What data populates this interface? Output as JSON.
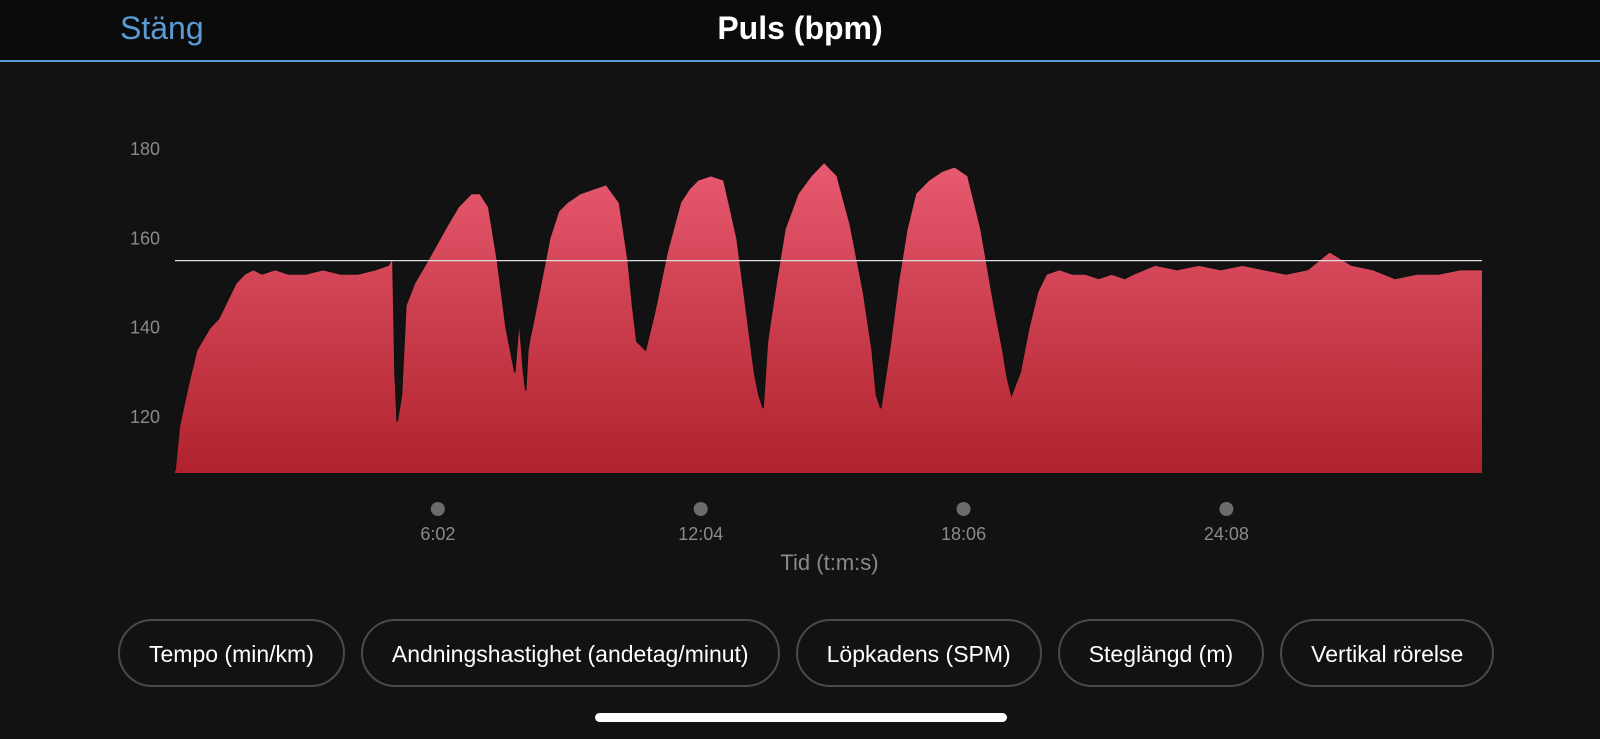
{
  "header": {
    "close_label": "Stäng",
    "title": "Puls (bpm)"
  },
  "chart_data": {
    "type": "area",
    "title": "Puls (bpm)",
    "xlabel": "Tid (t:m:s)",
    "ylabel": "",
    "x_unit": "minutes",
    "xlim": [
      0,
      30
    ],
    "ylim": [
      107.5,
      186
    ],
    "y_ticks": [
      120,
      140,
      160,
      180
    ],
    "x_ticks": [
      {
        "value": 6.033,
        "label": "6:02"
      },
      {
        "value": 12.067,
        "label": "12:04"
      },
      {
        "value": 18.1,
        "label": "18:06"
      },
      {
        "value": 24.133,
        "label": "24:08"
      }
    ],
    "reference_line": 155,
    "grid": false,
    "series": [
      {
        "x": [
          0,
          0.1,
          0.3,
          0.5,
          0.8,
          1.0,
          1.2,
          1.4,
          1.6,
          1.8,
          2.0,
          2.3,
          2.6,
          3.0,
          3.4,
          3.8,
          4.2,
          4.6,
          4.9,
          5.0,
          5.05,
          5.1,
          5.2,
          5.3,
          5.5,
          5.8,
          6.2,
          6.5,
          6.8,
          7.0,
          7.2,
          7.4,
          7.6,
          7.8,
          7.9,
          8.0,
          8.05,
          8.1,
          8.15,
          8.2,
          8.4,
          8.6,
          8.8,
          9.0,
          9.3,
          9.6,
          9.9,
          10.2,
          10.4,
          10.5,
          10.6,
          10.8,
          11.0,
          11.3,
          11.6,
          11.8,
          12.0,
          12.3,
          12.6,
          12.9,
          13.1,
          13.3,
          13.4,
          13.5,
          13.6,
          13.8,
          14.0,
          14.3,
          14.6,
          14.9,
          15.2,
          15.5,
          15.8,
          16.0,
          16.1,
          16.2,
          16.4,
          16.6,
          16.8,
          17.0,
          17.3,
          17.6,
          17.9,
          18.2,
          18.5,
          18.8,
          19.0,
          19.1,
          19.2,
          19.4,
          19.6,
          19.8,
          20.0,
          20.3,
          20.6,
          20.9,
          21.2,
          21.5,
          21.8,
          22.0,
          22.5,
          23.0,
          23.5,
          24.0,
          24.5,
          25.0,
          25.5,
          26.0,
          26.5,
          27.0,
          27.5,
          28.0,
          28.5,
          29.0,
          29.5,
          30.0
        ],
        "y": [
          108,
          118,
          127,
          135,
          140,
          142,
          146,
          150,
          152,
          153,
          152,
          153,
          152,
          152,
          153,
          152,
          152,
          153,
          154,
          156,
          130,
          119,
          125,
          145,
          150,
          155,
          162,
          167,
          170,
          170,
          167,
          155,
          140,
          130,
          142,
          130,
          126,
          135,
          138,
          140,
          150,
          160,
          166,
          168,
          170,
          171,
          172,
          168,
          155,
          145,
          137,
          135,
          143,
          157,
          168,
          171,
          173,
          174,
          173,
          160,
          145,
          130,
          125,
          122,
          137,
          150,
          162,
          170,
          174,
          177,
          174,
          163,
          148,
          135,
          125,
          122,
          135,
          150,
          162,
          170,
          173,
          175,
          176,
          174,
          162,
          145,
          135,
          129,
          125,
          130,
          140,
          148,
          152,
          153,
          152,
          152,
          151,
          152,
          151,
          152,
          154,
          153,
          154,
          153,
          154,
          153,
          152,
          153,
          157,
          154,
          153,
          151,
          152,
          152,
          153,
          153
        ]
      }
    ],
    "colors": {
      "area_top": "#e75a70",
      "area_bottom": "#b0222c",
      "outline": "#111111",
      "reference_line": "#dddddd",
      "tick_label": "#8a8a8a",
      "tick_dot": "#6b6b6b"
    }
  },
  "metric_chips": [
    "Tempo (min/km)",
    "Andningshastighet (andetag/minut)",
    "Löpkadens (SPM)",
    "Steglängd (m)",
    "Vertikal rörelse"
  ],
  "colors": {
    "accent": "#5b9bd5",
    "background": "#121212",
    "header_bg": "#0b0b0b",
    "chip_border": "#4a4a4a"
  }
}
